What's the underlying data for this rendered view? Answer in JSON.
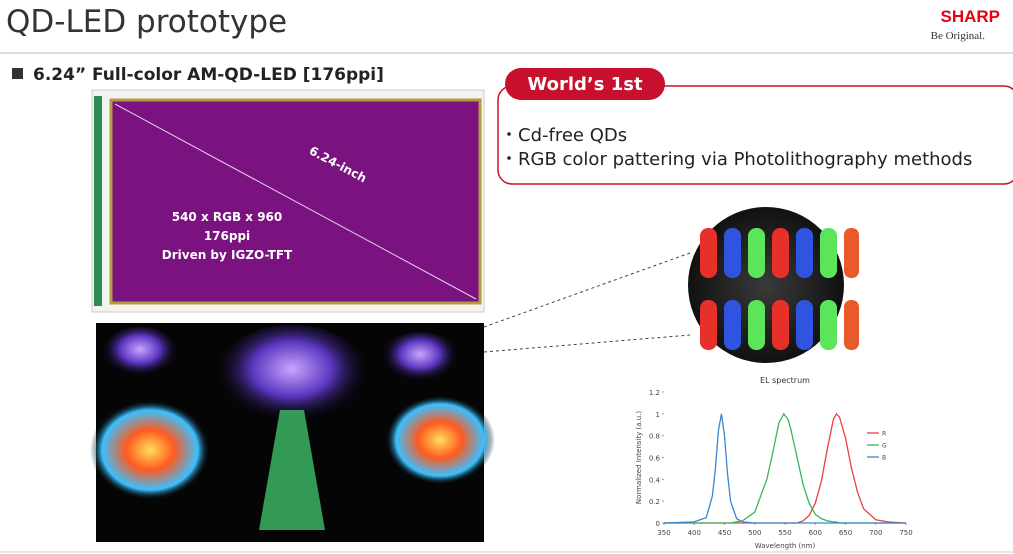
{
  "header": {
    "title": "QD-LED prototype",
    "logo": "SHARP",
    "tagline": "Be Original."
  },
  "subtitle": "6.24” Full-color AM-QD-LED [176ppi]",
  "badge": "World’s 1st",
  "bullets": [
    "Cd-free QDs",
    "RGB color pattering via Photolithography methods"
  ],
  "panel": {
    "diagonal": "6.24-inch",
    "specs": [
      "540 x RGB x 960",
      "176ppi",
      "Driven by IGZO-TFT"
    ]
  },
  "chart_data": {
    "type": "line",
    "title": "EL spectrum",
    "x_label": "Wavelength (nm)",
    "y_label": "Normalized Intensity (a.u.)",
    "x": [
      350,
      400,
      420,
      430,
      435,
      440,
      445,
      450,
      455,
      460,
      470,
      480,
      500,
      520,
      530,
      540,
      548,
      555,
      560,
      570,
      580,
      590,
      600,
      610,
      620,
      630,
      635,
      640,
      650,
      660,
      670,
      680,
      700,
      720,
      750
    ],
    "series": [
      {
        "name": "R",
        "color": "#e8413c",
        "values": [
          0,
          0,
          0,
          0,
          0,
          0,
          0,
          0,
          0,
          0,
          0,
          0,
          0,
          0,
          0,
          0,
          0,
          0,
          0,
          0,
          0.02,
          0.07,
          0.18,
          0.38,
          0.68,
          0.95,
          1,
          0.97,
          0.78,
          0.5,
          0.28,
          0.13,
          0.03,
          0.01,
          0
        ]
      },
      {
        "name": "G",
        "color": "#3bb55a",
        "values": [
          0,
          0,
          0,
          0,
          0,
          0,
          0,
          0,
          0,
          0,
          0.01,
          0.02,
          0.1,
          0.4,
          0.65,
          0.92,
          1,
          0.95,
          0.85,
          0.6,
          0.35,
          0.18,
          0.08,
          0.04,
          0.02,
          0.01,
          0.01,
          0,
          0,
          0,
          0,
          0,
          0,
          0,
          0
        ]
      },
      {
        "name": "B",
        "color": "#3a86d0",
        "values": [
          0,
          0.01,
          0.05,
          0.25,
          0.5,
          0.85,
          1,
          0.8,
          0.45,
          0.2,
          0.04,
          0.01,
          0,
          0,
          0,
          0,
          0,
          0,
          0,
          0,
          0,
          0,
          0,
          0,
          0,
          0,
          0,
          0,
          0,
          0,
          0,
          0,
          0,
          0,
          0
        ]
      }
    ],
    "xlim": [
      350,
      750
    ],
    "xticks": [
      350,
      400,
      450,
      500,
      550,
      600,
      650,
      700,
      750
    ],
    "ylim": [
      0,
      1.2
    ],
    "yticks": [
      0,
      0.2,
      0.4,
      0.6,
      0.8,
      1,
      1.2
    ]
  }
}
